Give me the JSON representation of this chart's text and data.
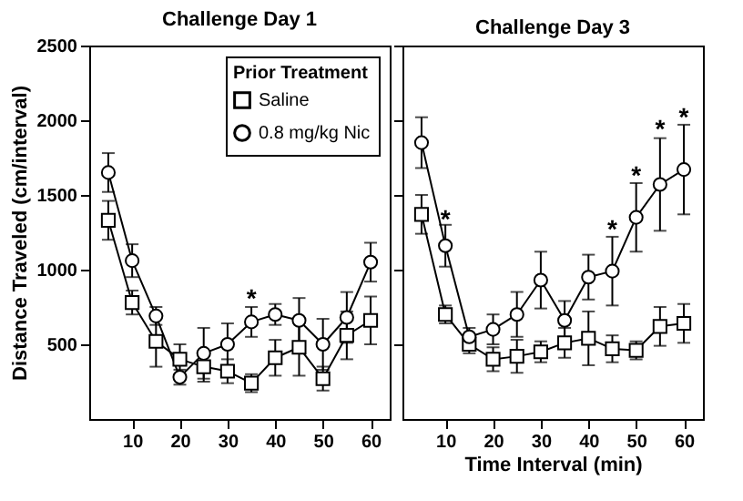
{
  "chart_data": [
    {
      "type": "line",
      "title": "Challenge Day 1",
      "ylabel": "Distance Traveled (cm/interval)",
      "legend_title": "Prior Treatment",
      "legend": "top right",
      "grid": false,
      "x": [
        5,
        10,
        15,
        20,
        25,
        30,
        35,
        40,
        45,
        50,
        55,
        60
      ],
      "xlim": [
        1,
        64
      ],
      "xticks": [
        10,
        20,
        30,
        40,
        50,
        60
      ],
      "ylim": [
        0,
        2500
      ],
      "yticks": [
        500,
        1000,
        1500,
        2000,
        2500
      ],
      "series": [
        {
          "name": "Saline",
          "color": "#000000",
          "marker": "square",
          "values": [
            1330,
            780,
            520,
            400,
            350,
            320,
            240,
            410,
            480,
            270,
            560,
            660
          ],
          "errors": [
            130,
            80,
            170,
            100,
            100,
            80,
            60,
            120,
            190,
            80,
            160,
            160
          ]
        },
        {
          "name": "0.8 mg/kg Nic",
          "color": "#000000",
          "marker": "circle",
          "values": [
            1650,
            1060,
            690,
            280,
            440,
            500,
            650,
            700,
            660,
            500,
            680,
            1050
          ],
          "errors": [
            130,
            110,
            60,
            50,
            170,
            140,
            100,
            70,
            150,
            170,
            170,
            130
          ]
        }
      ],
      "annotations": [
        {
          "text": "*",
          "x": 35,
          "y": 800
        }
      ]
    },
    {
      "type": "line",
      "title": "Challenge Day 3",
      "xlabel": "Time Interval (min)",
      "grid": false,
      "tick_labels": "x",
      "x": [
        5,
        10,
        15,
        20,
        25,
        30,
        35,
        40,
        45,
        50,
        55,
        60
      ],
      "xlim": [
        1,
        64
      ],
      "xticks": [
        10,
        20,
        30,
        40,
        50,
        60
      ],
      "ylim": [
        0,
        2500
      ],
      "yticks": [
        500,
        1000,
        1500,
        2000,
        2500
      ],
      "series": [
        {
          "color": "#000000",
          "marker": "square",
          "values": [
            1370,
            700,
            500,
            400,
            420,
            450,
            510,
            540,
            470,
            460,
            620,
            640
          ],
          "errors": [
            130,
            60,
            60,
            80,
            110,
            70,
            100,
            180,
            90,
            60,
            130,
            130
          ]
        },
        {
          "color": "#000000",
          "marker": "circle",
          "values": [
            1850,
            1160,
            550,
            600,
            700,
            930,
            660,
            950,
            990,
            1350,
            1570,
            1670
          ],
          "errors": [
            170,
            140,
            60,
            100,
            150,
            190,
            130,
            150,
            230,
            230,
            310,
            300
          ]
        }
      ],
      "annotations": [
        {
          "text": "*",
          "x": 10,
          "y": 1330
        },
        {
          "text": "*",
          "x": 45,
          "y": 1260
        },
        {
          "text": "*",
          "x": 50,
          "y": 1620
        },
        {
          "text": "*",
          "x": 55,
          "y": 1930
        },
        {
          "text": "*",
          "x": 60,
          "y": 2010
        }
      ]
    }
  ]
}
